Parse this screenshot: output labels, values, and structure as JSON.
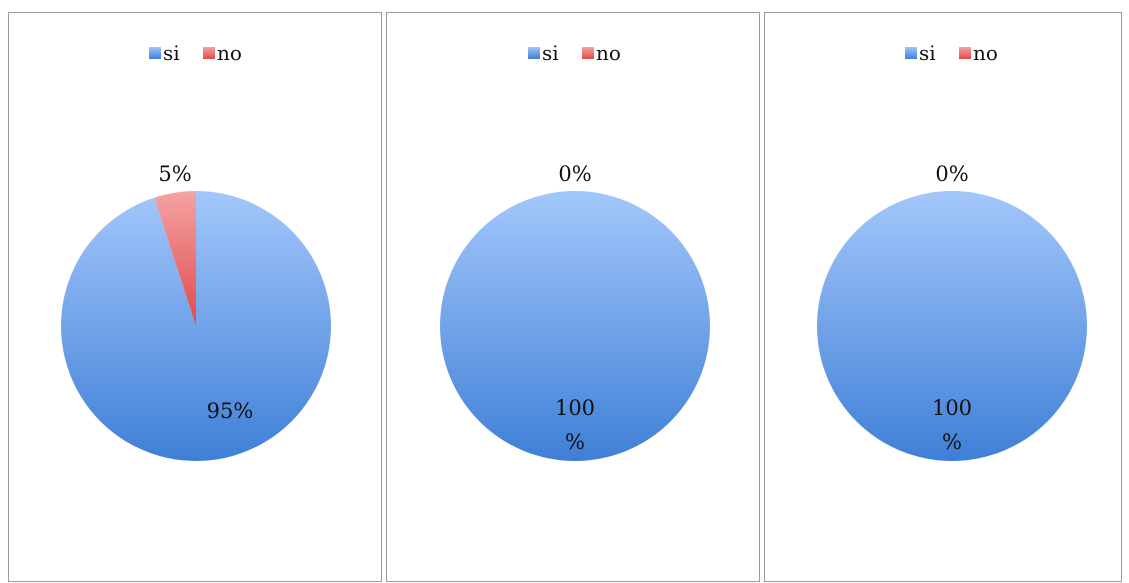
{
  "colors": {
    "si_light": "#a3c7fb",
    "si_dark": "#3f7fd6",
    "no_light": "#f4a3a3",
    "no_dark": "#e04a4a"
  },
  "chart_data": [
    {
      "type": "pie",
      "legend_placement": "top",
      "categories": [
        "si",
        "no"
      ],
      "values": [
        95,
        5
      ],
      "labels": [
        "95%",
        "5%"
      ]
    },
    {
      "type": "pie",
      "legend_placement": "top",
      "categories": [
        "si",
        "no"
      ],
      "values": [
        100,
        0
      ],
      "labels": [
        "100 %",
        "0%"
      ]
    },
    {
      "type": "pie",
      "legend_placement": "top",
      "categories": [
        "si",
        "no"
      ],
      "values": [
        100,
        0
      ],
      "labels": [
        "100 %",
        "0%"
      ]
    }
  ]
}
